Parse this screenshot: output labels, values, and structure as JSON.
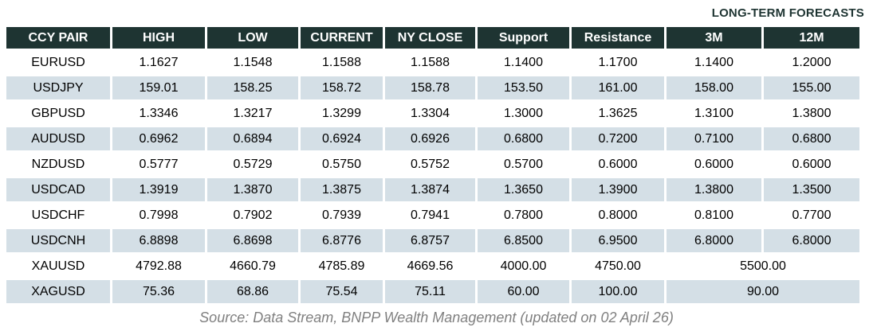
{
  "header": {
    "forecast_label": "LONG-TERM FORECASTS"
  },
  "table": {
    "columns": [
      "CCY PAIR",
      "HIGH",
      "LOW",
      "CURRENT",
      "NY CLOSE",
      "Support",
      "Resistance",
      "3M",
      "12M"
    ],
    "rows": [
      {
        "pair": "EURUSD",
        "values": [
          "1.1627",
          "1.1548",
          "1.1588",
          "1.1588",
          "1.1400",
          "1.1700",
          "1.1400",
          "1.2000"
        ]
      },
      {
        "pair": "USDJPY",
        "values": [
          "159.01",
          "158.25",
          "158.72",
          "158.78",
          "153.50",
          "161.00",
          "158.00",
          "155.00"
        ]
      },
      {
        "pair": "GBPUSD",
        "values": [
          "1.3346",
          "1.3217",
          "1.3299",
          "1.3304",
          "1.3000",
          "1.3625",
          "1.3100",
          "1.3800"
        ]
      },
      {
        "pair": "AUDUSD",
        "values": [
          "0.6962",
          "0.6894",
          "0.6924",
          "0.6926",
          "0.6800",
          "0.7200",
          "0.7100",
          "0.6800"
        ]
      },
      {
        "pair": "NZDUSD",
        "values": [
          "0.5777",
          "0.5729",
          "0.5750",
          "0.5752",
          "0.5700",
          "0.6000",
          "0.6000",
          "0.6000"
        ]
      },
      {
        "pair": "USDCAD",
        "values": [
          "1.3919",
          "1.3870",
          "1.3875",
          "1.3874",
          "1.3650",
          "1.3900",
          "1.3800",
          "1.3500"
        ]
      },
      {
        "pair": "USDCHF",
        "values": [
          "0.7998",
          "0.7902",
          "0.7939",
          "0.7941",
          "0.7800",
          "0.8000",
          "0.8100",
          "0.7700"
        ]
      },
      {
        "pair": "USDCNH",
        "values": [
          "6.8898",
          "6.8698",
          "6.8776",
          "6.8757",
          "6.8500",
          "6.9500",
          "6.8000",
          "6.8000"
        ]
      },
      {
        "pair": "XAUUSD",
        "values": [
          "4792.88",
          "4660.79",
          "4785.89",
          "4669.56",
          "4000.00",
          "4750.00"
        ],
        "long_term_merged": "5500.00"
      },
      {
        "pair": "XAGUSD",
        "values": [
          "75.36",
          "68.86",
          "75.54",
          "75.11",
          "60.00",
          "100.00"
        ],
        "long_term_merged": "90.00"
      }
    ]
  },
  "footer": {
    "source": "Source: Data Stream, BNPP Wealth Management (updated on 02 April 26)"
  },
  "colors": {
    "header_bg": "#1e3432",
    "header_text": "#ffffff",
    "row_alt_bg": "#d4dfe6",
    "forecast_label_text": "#1e3432",
    "source_text": "#808080"
  }
}
